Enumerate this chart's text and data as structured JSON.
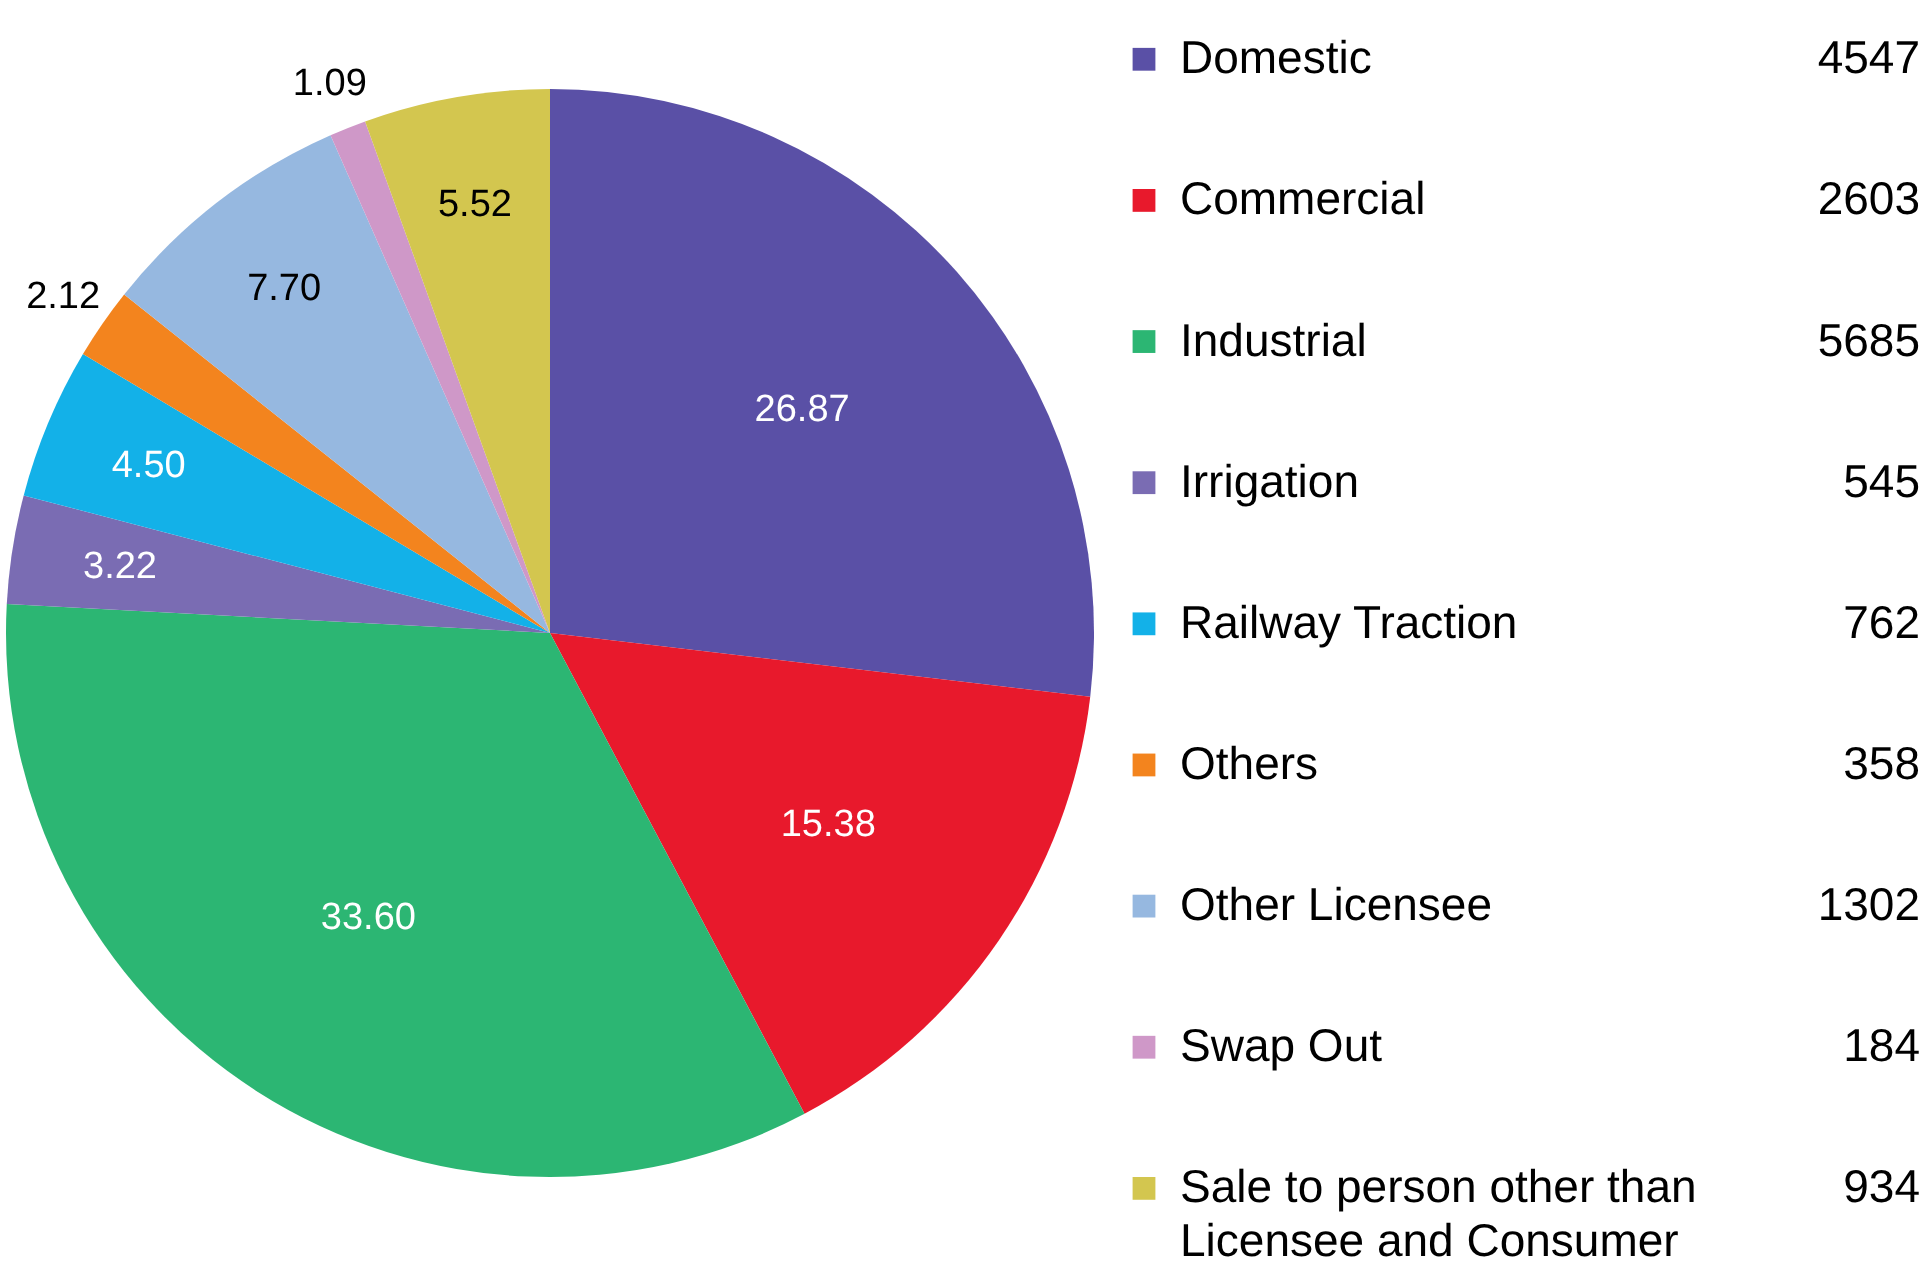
{
  "chart_data": {
    "type": "pie",
    "categories": [
      "Domestic",
      "Commercial",
      "Industrial",
      "Irrigation",
      "Railway Traction",
      "Others",
      "Other Licensee",
      "Swap Out",
      "Sale to person other than Licensee and Consumer"
    ],
    "values": [
      26.87,
      15.38,
      33.6,
      3.22,
      4.5,
      2.12,
      7.7,
      1.09,
      5.52
    ],
    "value_labels": [
      "26.87",
      "15.38",
      "33.60",
      "3.22",
      "4.50",
      "2.12",
      "7.70",
      "1.09",
      "5.52"
    ],
    "colors": [
      "#5a50a6",
      "#e8192c",
      "#2cb673",
      "#7a6cb3",
      "#13b1e8",
      "#f3841e",
      "#96b8e0",
      "#cf98c8",
      "#d3c64f"
    ],
    "annotations": [
      "4547",
      "2603",
      "5685",
      "545",
      "762",
      "358",
      "1302",
      "184",
      "934"
    ],
    "legend": "right"
  }
}
